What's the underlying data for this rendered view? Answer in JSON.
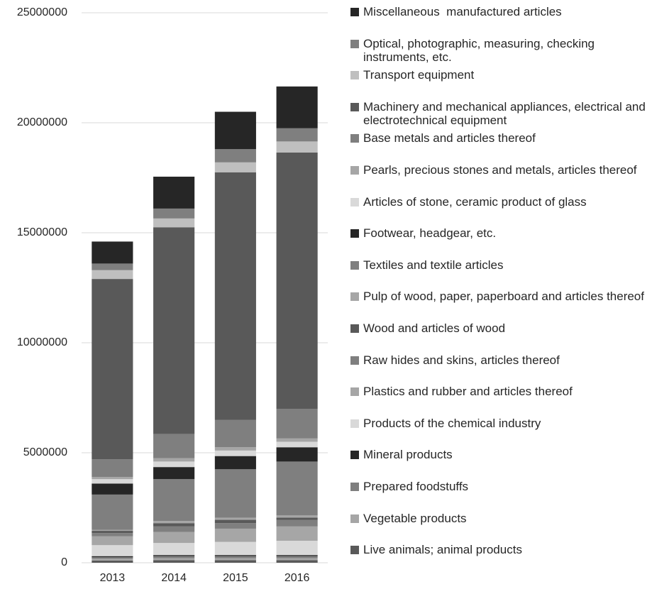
{
  "chart_data": {
    "type": "stacked-bar",
    "categories": [
      "2013",
      "2014",
      "2015",
      "2016"
    ],
    "ylim": [
      0,
      25000000
    ],
    "yticks": [
      0,
      5000000,
      10000000,
      15000000,
      20000000,
      25000000
    ],
    "grid": true,
    "legend": "right",
    "series": [
      {
        "name": "Live animals; animal products",
        "color": "#595959",
        "values": [
          100000,
          120000,
          120000,
          120000
        ]
      },
      {
        "name": "Vegetable products",
        "color": "#a6a6a6",
        "values": [
          80000,
          90000,
          90000,
          90000
        ]
      },
      {
        "name": "Prepared foodstuffs",
        "color": "#7f7f7f",
        "values": [
          70000,
          90000,
          90000,
          90000
        ]
      },
      {
        "name": "Mineral products",
        "color": "#262626",
        "values": [
          50000,
          50000,
          50000,
          50000
        ]
      },
      {
        "name": "Products of the chemical industry",
        "color": "#d9d9d9",
        "values": [
          500000,
          550000,
          600000,
          650000
        ]
      },
      {
        "name": "Plastics and rubber and articles thereof",
        "color": "#a6a6a6",
        "values": [
          400000,
          500000,
          600000,
          650000
        ]
      },
      {
        "name": "Raw hides and skins, articles thereof",
        "color": "#7f7f7f",
        "values": [
          150000,
          250000,
          250000,
          300000
        ]
      },
      {
        "name": "Wood and articles of wood",
        "color": "#595959",
        "values": [
          100000,
          150000,
          150000,
          100000
        ]
      },
      {
        "name": "Pulp of wood, paper, paperboard and articles thereof",
        "color": "#a6a6a6",
        "values": [
          50000,
          100000,
          100000,
          100000
        ]
      },
      {
        "name": "Textiles and textile articles",
        "color": "#7f7f7f",
        "values": [
          1600000,
          1900000,
          2200000,
          2450000
        ]
      },
      {
        "name": "Footwear, headgear, etc.",
        "color": "#262626",
        "values": [
          500000,
          550000,
          600000,
          650000
        ]
      },
      {
        "name": "Articles of stone, ceramic product of glass",
        "color": "#d9d9d9",
        "values": [
          200000,
          250000,
          250000,
          250000
        ]
      },
      {
        "name": "Pearls, precious stones and metals, articles thereof",
        "color": "#a6a6a6",
        "values": [
          100000,
          150000,
          150000,
          150000
        ]
      },
      {
        "name": "Base metals and articles thereof",
        "color": "#7f7f7f",
        "values": [
          800000,
          1100000,
          1250000,
          1350000
        ]
      },
      {
        "name": "Machinery and mechanical appliances, electrical and electrotechnical equipment",
        "color": "#595959",
        "values": [
          8200000,
          9400000,
          11250000,
          11650000
        ]
      },
      {
        "name": "Transport equipment",
        "color": "#bfbfbf",
        "values": [
          400000,
          400000,
          450000,
          500000
        ]
      },
      {
        "name": "Optical, photographic, measuring, checking instruments, etc.",
        "color": "#7f7f7f",
        "values": [
          300000,
          450000,
          600000,
          600000
        ]
      },
      {
        "name": "Miscellaneous  manufactured articles",
        "color": "#262626",
        "values": [
          1000000,
          1450000,
          1700000,
          1900000
        ]
      }
    ]
  }
}
